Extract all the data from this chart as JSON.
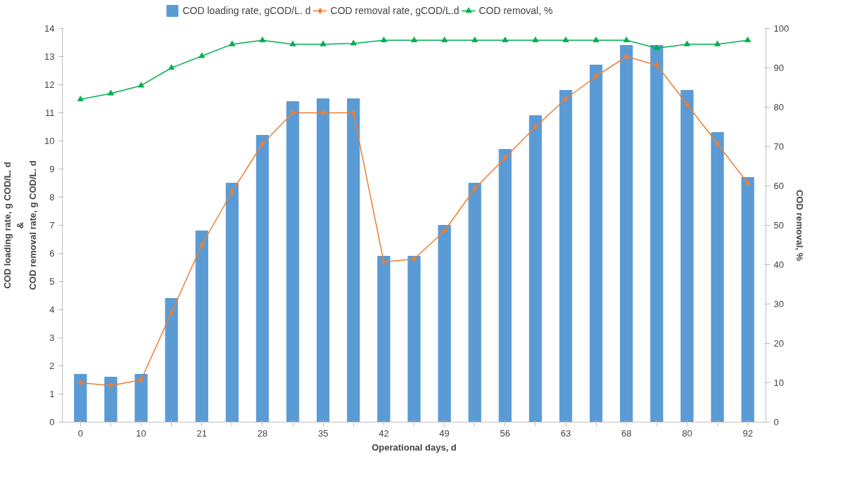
{
  "chart_data": {
    "type": "bar",
    "xlabel": "Operational days, d",
    "ylabel": "COD loading rate, g COD/L. d\n&\nCOD removal rate, g COD/L. d",
    "y2label": "COD removal, %",
    "categories": [
      "0",
      null,
      "10",
      null,
      "21",
      null,
      "28",
      null,
      "35",
      null,
      "42",
      null,
      "49",
      null,
      "56",
      null,
      "63",
      null,
      "68",
      null,
      "80",
      null,
      "92"
    ],
    "series": [
      {
        "name": "COD loading rate, gCOD/L. d",
        "color": "#5b9bd5",
        "values": [
          1.7,
          1.6,
          1.7,
          4.4,
          6.8,
          8.5,
          10.2,
          11.4,
          11.5,
          11.5,
          5.9,
          5.9,
          7.0,
          8.5,
          9.7,
          10.9,
          11.8,
          12.7,
          13.4,
          13.4,
          11.8,
          10.3,
          8.7
        ]
      },
      {
        "name": "COD removal rate, gCOD/L.d",
        "type": "line",
        "color": "#ed7d31",
        "marker": "diamond",
        "values": [
          1.4,
          1.3,
          1.5,
          3.9,
          6.3,
          8.2,
          9.9,
          11.0,
          11.0,
          11.0,
          5.7,
          5.8,
          6.8,
          8.3,
          9.4,
          10.5,
          11.5,
          12.3,
          13.0,
          12.7,
          11.3,
          9.9,
          8.5
        ]
      },
      {
        "name": "COD removal, %",
        "type": "line",
        "axis": "y2",
        "color": "#00b050",
        "marker": "triangle",
        "values": [
          82,
          83.5,
          85.5,
          90,
          93,
          96,
          97,
          96,
          96,
          96.2,
          97,
          97,
          97,
          97,
          97,
          97,
          97,
          97,
          97,
          95,
          96,
          96,
          97
        ]
      }
    ],
    "ylim": [
      0,
      14
    ],
    "yticks": [
      0,
      1,
      2,
      3,
      4,
      5,
      6,
      7,
      8,
      9,
      10,
      11,
      12,
      13,
      14
    ],
    "y2lim": [
      0,
      100
    ],
    "y2ticks": [
      0,
      10,
      20,
      30,
      40,
      50,
      60,
      70,
      80,
      90,
      100
    ],
    "grid": false,
    "legend": "top"
  }
}
